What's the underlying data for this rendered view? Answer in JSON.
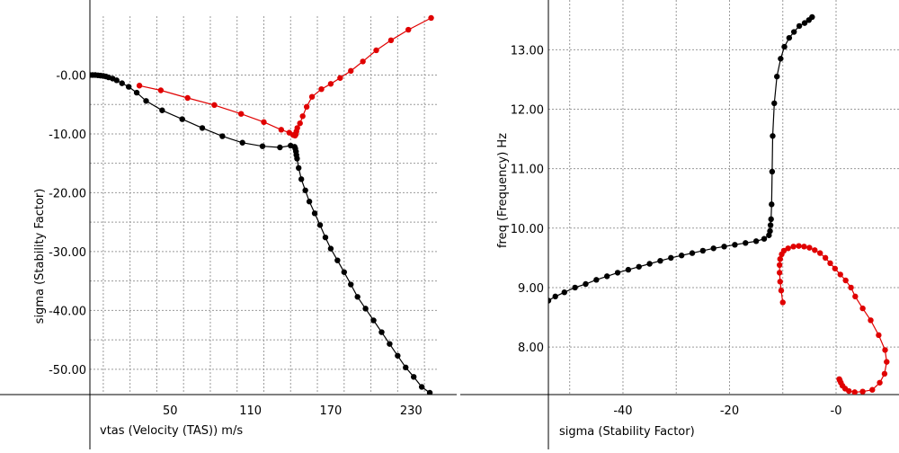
{
  "chart_data": [
    {
      "type": "line",
      "xlabel": "vtas (Velocity (TAS)) m/s",
      "ylabel": "sigma (Stability Factor)",
      "xlim": [
        -10,
        250
      ],
      "ylim": [
        -54,
        10
      ],
      "x_ticks": [
        50,
        110,
        170,
        230
      ],
      "x_tick_labels": [
        "50",
        "110",
        "170",
        "230"
      ],
      "y_ticks": [
        0,
        -10,
        -20,
        -30,
        -40,
        -50
      ],
      "y_tick_labels": [
        "-0.00",
        "-10.00",
        "-20.00",
        "-30.00",
        "-40.00",
        "-50.00"
      ],
      "x_minor_grid": [
        0,
        20,
        40,
        60,
        80,
        100,
        120,
        140,
        160,
        180,
        200,
        220,
        240
      ],
      "y_minor_grid": [
        0,
        -5,
        -10,
        -15,
        -20,
        -25,
        -30,
        -35,
        -40,
        -45,
        -50
      ],
      "grid": true,
      "series": [
        {
          "color": "#000000",
          "x": [
            -10,
            -8,
            -6,
            -4,
            -2,
            0,
            2,
            4,
            7,
            10,
            14,
            19,
            25,
            32,
            44,
            59,
            74,
            89,
            104,
            119,
            132,
            140,
            143,
            143.5,
            144,
            144.3,
            144.8,
            146,
            148,
            151,
            154,
            158,
            162,
            166,
            170,
            175,
            180,
            185,
            190,
            196,
            202,
            208,
            214,
            220,
            226,
            232,
            238,
            244
          ],
          "y": [
            0,
            0,
            0,
            -0.05,
            -0.1,
            -0.15,
            -0.25,
            -0.4,
            -0.6,
            -0.9,
            -1.4,
            -2.0,
            -3.0,
            -4.4,
            -6.0,
            -7.5,
            -9.0,
            -10.4,
            -11.5,
            -12.1,
            -12.3,
            -12.0,
            -12.2,
            -12.5,
            -13.0,
            -13.6,
            -14.2,
            -15.8,
            -17.7,
            -19.6,
            -21.5,
            -23.5,
            -25.5,
            -27.6,
            -29.5,
            -31.5,
            -33.5,
            -35.6,
            -37.7,
            -39.7,
            -41.7,
            -43.7,
            -45.7,
            -47.7,
            -49.7,
            -51.3,
            -53.0,
            -54.0
          ]
        },
        {
          "color": "#e00000",
          "x": [
            27,
            43,
            63,
            83,
            103,
            120,
            133,
            139,
            142,
            143.3,
            143.8,
            144.3,
            145,
            147,
            149,
            152,
            156,
            163,
            170,
            177,
            185,
            194,
            204,
            215,
            228,
            245
          ],
          "y": [
            -1.8,
            -2.6,
            -3.9,
            -5.1,
            -6.6,
            -8.0,
            -9.3,
            -9.8,
            -10.2,
            -10.3,
            -10.1,
            -9.6,
            -9.0,
            -8.2,
            -7.0,
            -5.4,
            -3.7,
            -2.4,
            -1.5,
            -0.5,
            0.7,
            2.3,
            4.2,
            5.9,
            7.7,
            9.7
          ]
        }
      ]
    },
    {
      "type": "line",
      "xlabel": "sigma (Stability Factor)",
      "ylabel": "freq (Frequency) Hz",
      "xlim": [
        -54,
        0
      ],
      "ylim": [
        7.2,
        13.55
      ],
      "x_ticks": [
        -40,
        -20,
        0
      ],
      "x_tick_labels": [
        "-40",
        "-20",
        "-0"
      ],
      "y_ticks": [
        8,
        9,
        10,
        11,
        12,
        13
      ],
      "y_tick_labels": [
        "8.00",
        "9.00",
        "10.00",
        "11.00",
        "12.00",
        "13.00"
      ],
      "x_minor_grid": [
        -50,
        -40,
        -30,
        -20,
        -10,
        0
      ],
      "y_minor_grid": [
        8,
        9,
        10,
        11,
        12,
        13
      ],
      "grid": true,
      "series": [
        {
          "color": "#000000",
          "x": [
            -54,
            -52.7,
            -51,
            -49,
            -47,
            -45,
            -43,
            -41,
            -39,
            -37,
            -35,
            -33,
            -31,
            -29,
            -27,
            -25,
            -23,
            -21,
            -19,
            -17,
            -15,
            -13.5,
            -12.6,
            -12.4,
            -12.3,
            -12.2,
            -12.1,
            -12.0,
            -11.9,
            -11.6,
            -11.1,
            -10.4,
            -9.7,
            -8.8,
            -7.9,
            -6.9,
            -5.9,
            -5.1,
            -4.5
          ],
          "y": [
            8.78,
            8.85,
            8.92,
            9.0,
            9.06,
            9.13,
            9.19,
            9.25,
            9.3,
            9.35,
            9.4,
            9.45,
            9.5,
            9.54,
            9.58,
            9.62,
            9.66,
            9.69,
            9.72,
            9.75,
            9.78,
            9.82,
            9.88,
            9.95,
            10.05,
            10.15,
            10.4,
            10.95,
            11.55,
            12.1,
            12.55,
            12.85,
            13.05,
            13.2,
            13.3,
            13.4,
            13.45,
            13.5,
            13.55
          ]
        },
        {
          "color": "#e00000",
          "x": [
            -10,
            -10.3,
            -10.5,
            -10.6,
            -10.6,
            -10.5,
            -10.2,
            -9.8,
            -9.0,
            -8.0,
            -7.0,
            -6.0,
            -5.0,
            -4.0,
            -3.0,
            -2.0,
            -1.1,
            -0.2,
            0.8,
            1.8,
            2.8,
            3.6,
            5.0,
            6.5,
            8.0,
            9.2,
            9.5,
            9.1,
            8.2,
            6.8,
            5.0,
            3.5,
            2.4,
            1.7,
            1.2,
            0.9,
            0.7,
            0.6
          ],
          "y": [
            8.75,
            8.95,
            9.1,
            9.25,
            9.38,
            9.48,
            9.56,
            9.62,
            9.66,
            9.69,
            9.7,
            9.69,
            9.67,
            9.63,
            9.58,
            9.5,
            9.41,
            9.32,
            9.22,
            9.12,
            9.0,
            8.85,
            8.65,
            8.45,
            8.2,
            7.95,
            7.75,
            7.55,
            7.4,
            7.28,
            7.25,
            7.24,
            7.26,
            7.3,
            7.35,
            7.4,
            7.44,
            7.46
          ]
        }
      ]
    }
  ]
}
